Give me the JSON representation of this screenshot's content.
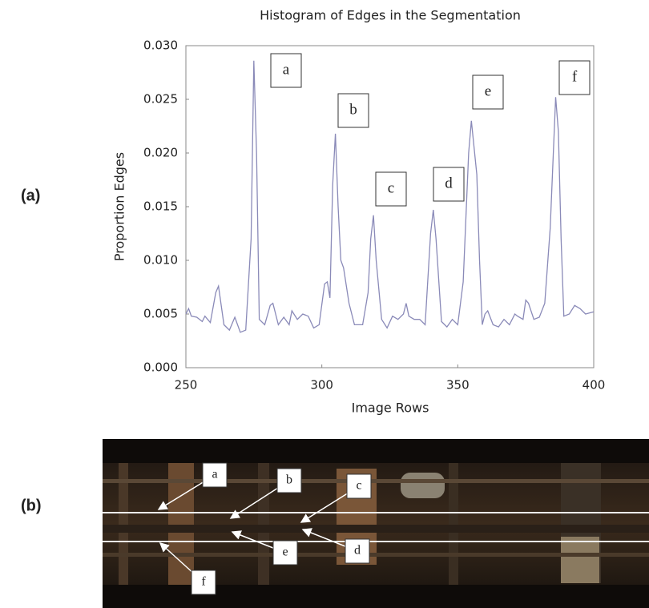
{
  "chart_data": {
    "type": "line",
    "title": "Histogram of Edges in the Segmentation",
    "x_label": "Image Rows",
    "y_label": "Proportion Edges",
    "color": "#8a8ab8",
    "xlim": [
      250,
      400
    ],
    "xticks": [
      250,
      300,
      350,
      400
    ],
    "ylim": [
      0,
      0.03
    ],
    "yticks": [
      {
        "value": 0,
        "label": "0.000"
      },
      0.005,
      {
        "value": 0.01,
        "label": "0.010"
      },
      0.015,
      {
        "value": 0.02,
        "label": "0.020"
      },
      0.025,
      {
        "value": 0.03,
        "label": "0.030"
      }
    ],
    "annotations": [
      "a",
      "b",
      "c",
      "d",
      "e",
      "f"
    ],
    "x": [
      250,
      251,
      252,
      254,
      256,
      257,
      259,
      261,
      262,
      264,
      266,
      268,
      270,
      272,
      274,
      275,
      276,
      277,
      279,
      281,
      282,
      284,
      286,
      288,
      289,
      291,
      293,
      295,
      297,
      299,
      301,
      302,
      303,
      304,
      305,
      306,
      307,
      308,
      310,
      312,
      313,
      315,
      317,
      318,
      319,
      320,
      322,
      324,
      326,
      328,
      330,
      331,
      332,
      334,
      336,
      338,
      340,
      341,
      342,
      344,
      346,
      348,
      350,
      352,
      354,
      355,
      357,
      358,
      359,
      360,
      361,
      363,
      365,
      367,
      369,
      371,
      372,
      374,
      375,
      376,
      378,
      380,
      382,
      384,
      386,
      387,
      388,
      389,
      391,
      393,
      395,
      397,
      400
    ],
    "values": [
      0.005,
      0.0055,
      0.0048,
      0.0047,
      0.0043,
      0.0048,
      0.0042,
      0.007,
      0.0076,
      0.004,
      0.0035,
      0.0047,
      0.0033,
      0.0035,
      0.012,
      0.0286,
      0.02,
      0.0045,
      0.004,
      0.0058,
      0.006,
      0.004,
      0.0047,
      0.004,
      0.0053,
      0.0045,
      0.005,
      0.0048,
      0.0037,
      0.004,
      0.0078,
      0.008,
      0.0065,
      0.017,
      0.0218,
      0.015,
      0.01,
      0.0093,
      0.006,
      0.004,
      0.004,
      0.004,
      0.007,
      0.012,
      0.0142,
      0.01,
      0.0045,
      0.0037,
      0.0048,
      0.0045,
      0.005,
      0.006,
      0.0048,
      0.0045,
      0.0045,
      0.004,
      0.0125,
      0.0147,
      0.012,
      0.0043,
      0.0038,
      0.0045,
      0.004,
      0.008,
      0.02,
      0.023,
      0.018,
      0.01,
      0.004,
      0.005,
      0.0053,
      0.004,
      0.0038,
      0.0045,
      0.004,
      0.005,
      0.0048,
      0.0045,
      0.0063,
      0.006,
      0.0045,
      0.0047,
      0.006,
      0.013,
      0.0252,
      0.022,
      0.012,
      0.0048,
      0.005,
      0.0058,
      0.0055,
      0.005,
      0.0052
    ]
  },
  "panel_labels": [
    "(a)",
    "(b)"
  ],
  "photo": {
    "labels": [
      "a",
      "b",
      "c",
      "d",
      "e",
      "f"
    ]
  }
}
